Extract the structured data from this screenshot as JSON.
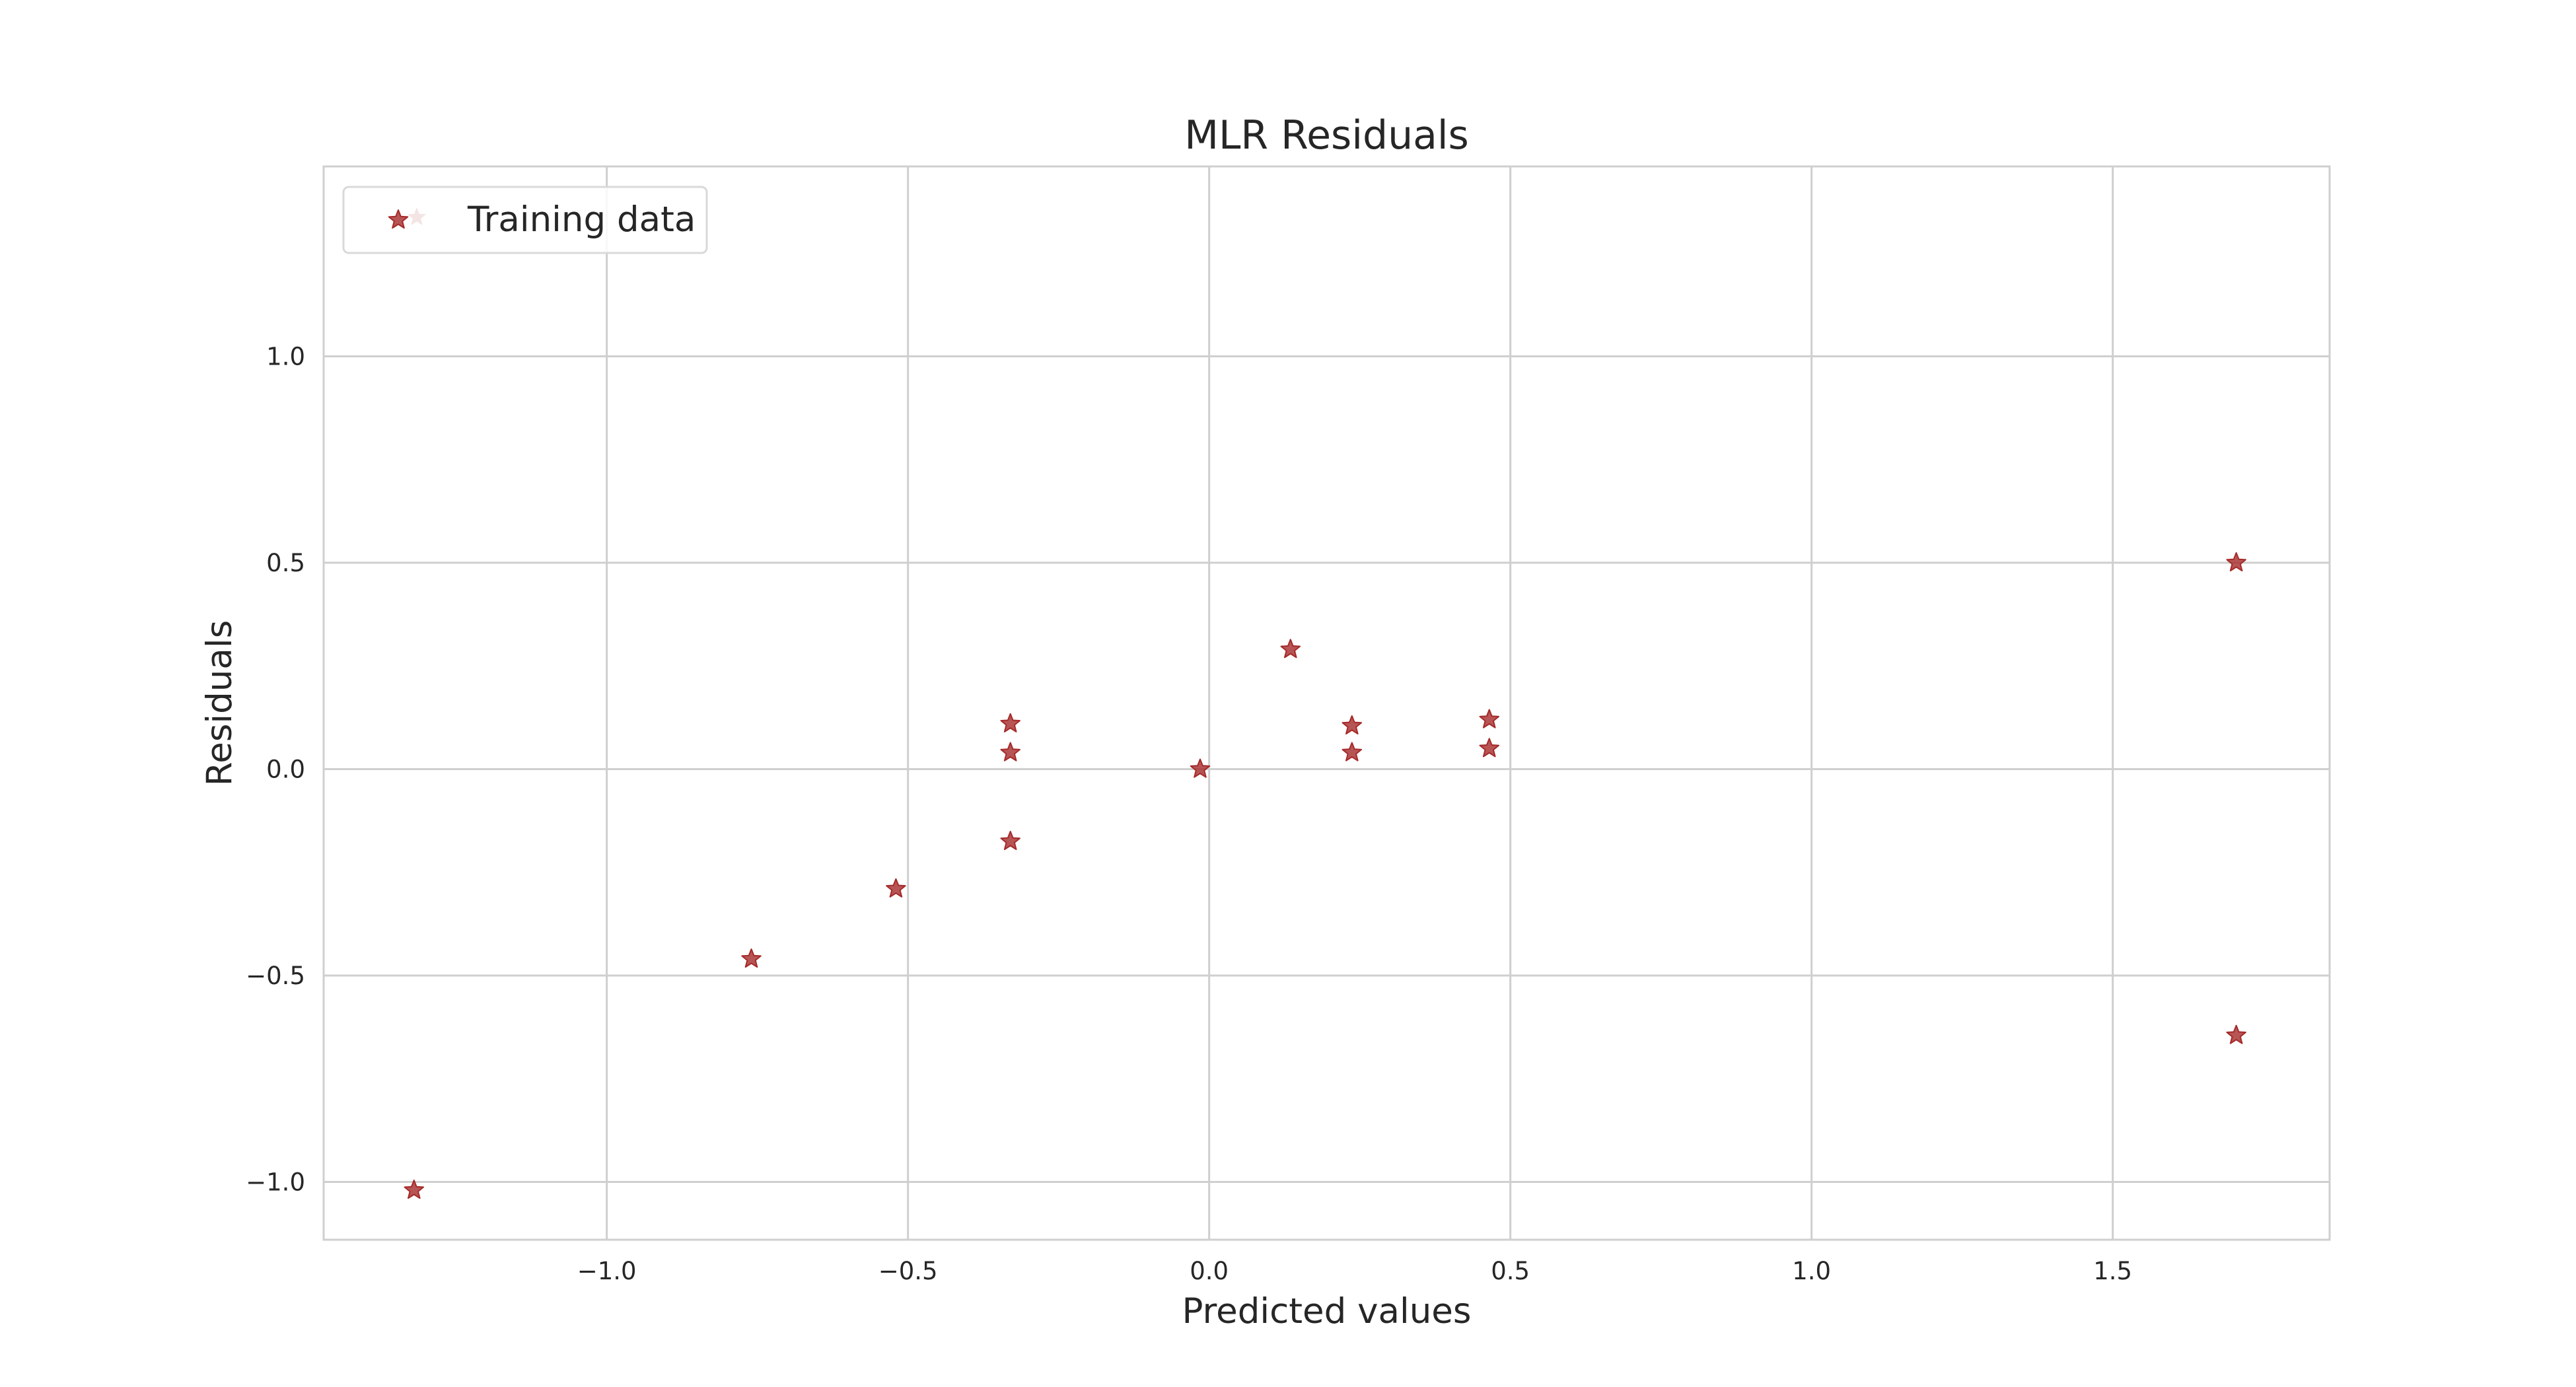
{
  "chart_data": {
    "type": "scatter",
    "title": "MLR Residuals",
    "xlabel": "Predicted values",
    "ylabel": "Residuals",
    "xlim": [
      -1.47,
      1.86
    ],
    "ylim": [
      -1.14,
      1.46
    ],
    "xticks": [
      -1.0,
      -0.5,
      0.0,
      0.5,
      1.0,
      1.5
    ],
    "xtick_labels": [
      "−1.0",
      "−0.5",
      "0.0",
      "0.5",
      "1.0",
      "1.5"
    ],
    "yticks": [
      -1.0,
      -0.5,
      0.0,
      0.5,
      1.0
    ],
    "ytick_labels": [
      "−1.0",
      "−0.5",
      "0.0",
      "0.5",
      "1.0"
    ],
    "grid": true,
    "legend": {
      "position": "top-left",
      "entries": [
        "Training data"
      ]
    },
    "marker": "star",
    "marker_color": "#a52a2a",
    "series": [
      {
        "name": "Training data",
        "x": [
          -1.32,
          -0.76,
          -0.52,
          -0.33,
          -0.33,
          -0.33,
          -0.015,
          0.135,
          0.237,
          0.237,
          0.465,
          0.465,
          1.705,
          1.705
        ],
        "y": [
          -1.02,
          -0.46,
          -0.29,
          0.11,
          0.04,
          -0.175,
          0.0,
          0.29,
          0.105,
          0.04,
          0.12,
          0.05,
          0.5,
          -0.645
        ]
      }
    ]
  }
}
